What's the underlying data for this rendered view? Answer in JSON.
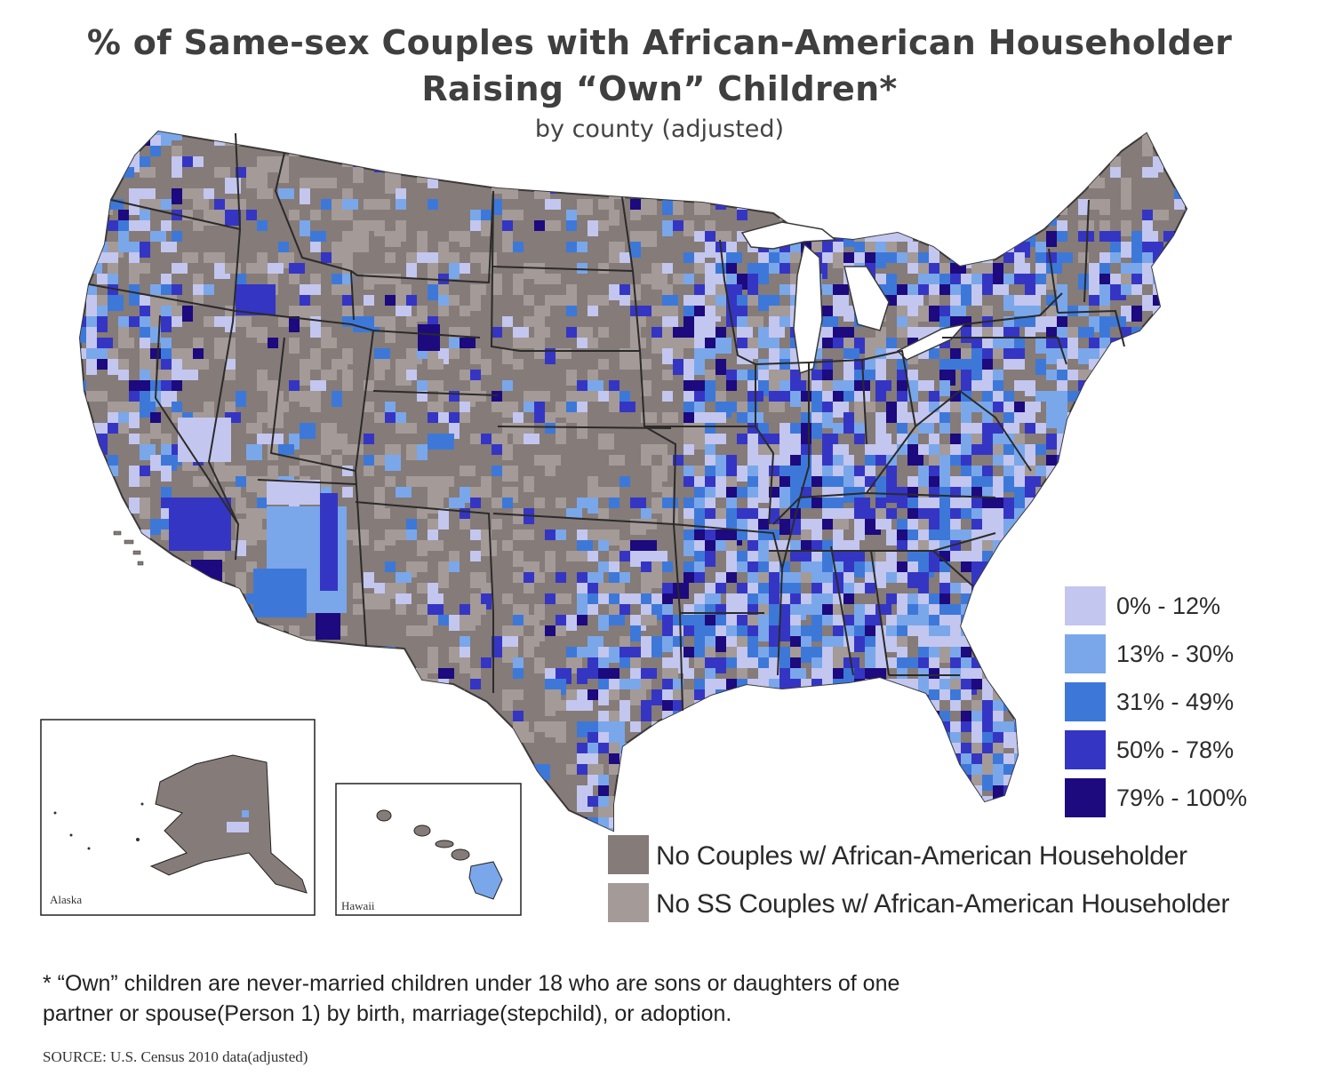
{
  "title": {
    "line1": "% of Same-sex Couples with African-American Householder",
    "line2": "Raising “Own” Children*"
  },
  "subtitle": "by county (adjusted)",
  "colors": {
    "bin_0_12": "#c3c6ee",
    "bin_13_30": "#7aa7ea",
    "bin_31_49": "#3d78d9",
    "bin_50_78": "#3535c4",
    "bin_79_100": "#1c0a7e",
    "no_couples": "#857b78",
    "no_ss_couples": "#a49a97",
    "border": "#2a2a2a"
  },
  "legend": {
    "bins": [
      {
        "label": "0% - 12%",
        "color": "#c3c6ee"
      },
      {
        "label": "13% - 30%",
        "color": "#7aa7ea"
      },
      {
        "label": "31% - 49%",
        "color": "#3d78d9"
      },
      {
        "label": "50% - 78%",
        "color": "#3535c4"
      },
      {
        "label": "79% - 100%",
        "color": "#1c0a7e"
      }
    ],
    "no_couples": {
      "label": "No Couples w/ African-American Householder",
      "color": "#857b78"
    },
    "no_ss_couples": {
      "label": "No SS Couples w/ African-American Householder",
      "color": "#a49a97"
    }
  },
  "insets": {
    "alaska": "Alaska",
    "hawaii": "Hawaii"
  },
  "footnote": {
    "line1": "* “Own” children are never-married children under 18 who are sons or daughters of one",
    "line2": "partner or spouse(Person 1) by birth, marriage(stepchild), or adoption."
  },
  "source": "SOURCE: U.S. Census 2010 data(adjusted)"
}
